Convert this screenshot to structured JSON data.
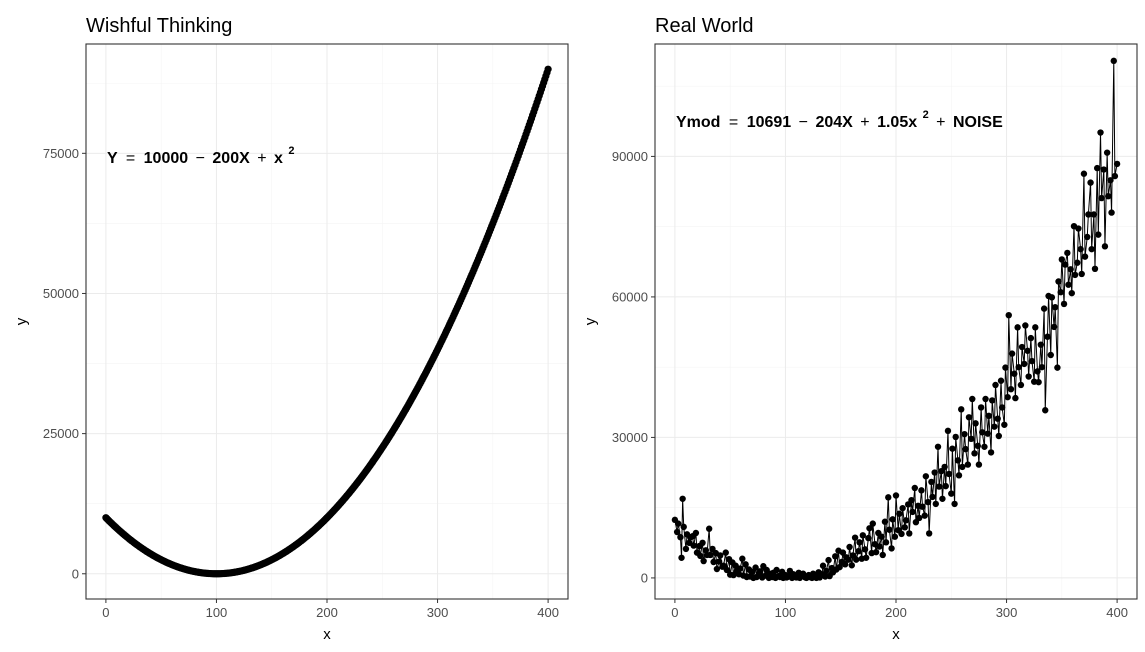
{
  "chart_data": [
    {
      "type": "scatter",
      "title": "Wishful Thinking",
      "xlabel": "x",
      "ylabel": "y",
      "xlim": [
        -18,
        418
      ],
      "ylim": [
        -4500,
        94500
      ],
      "x_ticks": [
        0,
        100,
        200,
        300,
        400
      ],
      "x_tick_labels": [
        "0",
        "100",
        "200",
        "300",
        "400"
      ],
      "y_ticks": [
        0,
        25000,
        50000,
        75000
      ],
      "y_tick_labels": [
        "0",
        "25000",
        "50000",
        "75000"
      ],
      "grid": true,
      "connect_points": false,
      "annotation": {
        "lhs": "Y",
        "eq": "=",
        "t1": "10000",
        "minus": "−",
        "t2": "200X",
        "plus": "+",
        "t3": "x",
        "sup": "2"
      },
      "formula": "y = 10000 - 200x + x^2",
      "x_range": [
        0,
        400,
        1
      ],
      "colors": {
        "points": "#000000"
      }
    },
    {
      "type": "scatter",
      "title": "Real World",
      "xlabel": "x",
      "ylabel": "y",
      "xlim": [
        -18,
        418
      ],
      "ylim": [
        -4500,
        114000
      ],
      "x_ticks": [
        0,
        100,
        200,
        300,
        400
      ],
      "x_tick_labels": [
        "0",
        "100",
        "200",
        "300",
        "400"
      ],
      "y_ticks": [
        0,
        30000,
        60000,
        90000
      ],
      "y_tick_labels": [
        "0",
        "30000",
        "60000",
        "90000"
      ],
      "grid": true,
      "connect_points": true,
      "annotation": {
        "lhs": "Ymod",
        "eq": "=",
        "t1": "10691",
        "minus": "−",
        "t2": "204X",
        "plus": "+",
        "t3": "1.05x",
        "sup": "2",
        "plus2": "+",
        "t4": "NOISE"
      },
      "points": [
        [
          0,
          12400
        ],
        [
          2,
          9800
        ],
        [
          3,
          11600
        ],
        [
          5,
          8700
        ],
        [
          6,
          4300
        ],
        [
          7,
          16900
        ],
        [
          8,
          10900
        ],
        [
          10,
          6200
        ],
        [
          11,
          9300
        ],
        [
          13,
          7500
        ],
        [
          14,
          8700
        ],
        [
          16,
          8900
        ],
        [
          17,
          6900
        ],
        [
          19,
          9600
        ],
        [
          20,
          5400
        ],
        [
          22,
          6800
        ],
        [
          23,
          4700
        ],
        [
          25,
          7500
        ],
        [
          26,
          3600
        ],
        [
          28,
          5900
        ],
        [
          29,
          4900
        ],
        [
          31,
          10500
        ],
        [
          32,
          4900
        ],
        [
          34,
          6200
        ],
        [
          35,
          3400
        ],
        [
          37,
          5300
        ],
        [
          38,
          1900
        ],
        [
          40,
          3500
        ],
        [
          41,
          4800
        ],
        [
          43,
          2400
        ],
        [
          44,
          2600
        ],
        [
          46,
          5400
        ],
        [
          47,
          1700
        ],
        [
          49,
          4000
        ],
        [
          50,
          700
        ],
        [
          52,
          3300
        ],
        [
          53,
          600
        ],
        [
          55,
          2600
        ],
        [
          56,
          1500
        ],
        [
          58,
          800
        ],
        [
          59,
          2000
        ],
        [
          61,
          4100
        ],
        [
          62,
          500
        ],
        [
          64,
          2900
        ],
        [
          65,
          200
        ],
        [
          67,
          1800
        ],
        [
          68,
          300
        ],
        [
          70,
          1300
        ],
        [
          71,
          0
        ],
        [
          73,
          2200
        ],
        [
          74,
          200
        ],
        [
          76,
          900
        ],
        [
          77,
          1400
        ],
        [
          79,
          100
        ],
        [
          80,
          2500
        ],
        [
          82,
          500
        ],
        [
          83,
          1700
        ],
        [
          85,
          0
        ],
        [
          86,
          900
        ],
        [
          88,
          200
        ],
        [
          89,
          1100
        ],
        [
          91,
          0
        ],
        [
          92,
          1700
        ],
        [
          94,
          400
        ],
        [
          95,
          200
        ],
        [
          97,
          1300
        ],
        [
          98,
          0
        ],
        [
          100,
          600
        ],
        [
          101,
          100
        ],
        [
          103,
          300
        ],
        [
          104,
          1500
        ],
        [
          106,
          0
        ],
        [
          107,
          800
        ],
        [
          109,
          200
        ],
        [
          110,
          100
        ],
        [
          112,
          1100
        ],
        [
          113,
          0
        ],
        [
          115,
          400
        ],
        [
          116,
          900
        ],
        [
          118,
          100
        ],
        [
          119,
          0
        ],
        [
          121,
          600
        ],
        [
          122,
          200
        ],
        [
          124,
          0
        ],
        [
          125,
          900
        ],
        [
          127,
          300
        ],
        [
          128,
          0
        ],
        [
          130,
          1200
        ],
        [
          131,
          100
        ],
        [
          133,
          800
        ],
        [
          134,
          2600
        ],
        [
          136,
          300
        ],
        [
          137,
          1500
        ],
        [
          139,
          3800
        ],
        [
          140,
          400
        ],
        [
          142,
          2100
        ],
        [
          143,
          1200
        ],
        [
          145,
          4600
        ],
        [
          146,
          1800
        ],
        [
          148,
          5800
        ],
        [
          149,
          2300
        ],
        [
          151,
          3400
        ],
        [
          152,
          5400
        ],
        [
          154,
          2900
        ],
        [
          155,
          4400
        ],
        [
          157,
          3900
        ],
        [
          158,
          6600
        ],
        [
          160,
          2700
        ],
        [
          161,
          4800
        ],
        [
          163,
          8600
        ],
        [
          164,
          3900
        ],
        [
          166,
          5700
        ],
        [
          167,
          7600
        ],
        [
          169,
          4100
        ],
        [
          170,
          9100
        ],
        [
          172,
          6100
        ],
        [
          173,
          4300
        ],
        [
          175,
          8500
        ],
        [
          176,
          10600
        ],
        [
          178,
          5300
        ],
        [
          179,
          11600
        ],
        [
          181,
          7200
        ],
        [
          182,
          5500
        ],
        [
          184,
          9600
        ],
        [
          185,
          6700
        ],
        [
          187,
          8800
        ],
        [
          188,
          4900
        ],
        [
          190,
          12000
        ],
        [
          191,
          7600
        ],
        [
          193,
          17200
        ],
        [
          194,
          10300
        ],
        [
          196,
          6300
        ],
        [
          197,
          12500
        ],
        [
          199,
          8800
        ],
        [
          200,
          17600
        ],
        [
          202,
          10200
        ],
        [
          203,
          13700
        ],
        [
          205,
          9400
        ],
        [
          206,
          14900
        ],
        [
          208,
          10800
        ],
        [
          209,
          12300
        ],
        [
          211,
          15700
        ],
        [
          212,
          9500
        ],
        [
          214,
          16600
        ],
        [
          215,
          14100
        ],
        [
          217,
          19200
        ],
        [
          218,
          11900
        ],
        [
          220,
          15400
        ],
        [
          221,
          12800
        ],
        [
          223,
          18700
        ],
        [
          224,
          15200
        ],
        [
          226,
          13300
        ],
        [
          227,
          21700
        ],
        [
          229,
          16200
        ],
        [
          230,
          9500
        ],
        [
          232,
          20500
        ],
        [
          233,
          17300
        ],
        [
          235,
          22500
        ],
        [
          236,
          15800
        ],
        [
          238,
          28000
        ],
        [
          239,
          19500
        ],
        [
          241,
          22800
        ],
        [
          242,
          16900
        ],
        [
          244,
          23700
        ],
        [
          245,
          19600
        ],
        [
          247,
          31400
        ],
        [
          248,
          22200
        ],
        [
          250,
          18000
        ],
        [
          251,
          27600
        ],
        [
          253,
          15800
        ],
        [
          254,
          30100
        ],
        [
          256,
          25100
        ],
        [
          257,
          21900
        ],
        [
          259,
          36000
        ],
        [
          260,
          23700
        ],
        [
          262,
          30700
        ],
        [
          263,
          27500
        ],
        [
          265,
          24200
        ],
        [
          266,
          34300
        ],
        [
          268,
          29700
        ],
        [
          269,
          38200
        ],
        [
          271,
          26600
        ],
        [
          272,
          33000
        ],
        [
          274,
          28200
        ],
        [
          275,
          24200
        ],
        [
          277,
          36400
        ],
        [
          278,
          31100
        ],
        [
          280,
          28000
        ],
        [
          281,
          38200
        ],
        [
          283,
          30800
        ],
        [
          284,
          34600
        ],
        [
          286,
          26800
        ],
        [
          287,
          37900
        ],
        [
          289,
          32300
        ],
        [
          290,
          41200
        ],
        [
          292,
          34000
        ],
        [
          293,
          30300
        ],
        [
          295,
          42100
        ],
        [
          296,
          36400
        ],
        [
          298,
          32700
        ],
        [
          299,
          44900
        ],
        [
          301,
          38600
        ],
        [
          302,
          56100
        ],
        [
          304,
          40300
        ],
        [
          305,
          47900
        ],
        [
          307,
          43600
        ],
        [
          308,
          38400
        ],
        [
          310,
          53500
        ],
        [
          311,
          45000
        ],
        [
          313,
          41200
        ],
        [
          314,
          49300
        ],
        [
          316,
          45700
        ],
        [
          317,
          53900
        ],
        [
          319,
          48500
        ],
        [
          320,
          43000
        ],
        [
          322,
          51200
        ],
        [
          323,
          46300
        ],
        [
          325,
          41900
        ],
        [
          326,
          53500
        ],
        [
          328,
          44100
        ],
        [
          329,
          41800
        ],
        [
          331,
          49800
        ],
        [
          332,
          45000
        ],
        [
          334,
          57500
        ],
        [
          335,
          35800
        ],
        [
          337,
          51500
        ],
        [
          338,
          60200
        ],
        [
          340,
          47600
        ],
        [
          341,
          59900
        ],
        [
          343,
          53600
        ],
        [
          344,
          57800
        ],
        [
          346,
          44900
        ],
        [
          347,
          63300
        ],
        [
          349,
          61000
        ],
        [
          350,
          68000
        ],
        [
          352,
          58500
        ],
        [
          353,
          66900
        ],
        [
          355,
          69400
        ],
        [
          356,
          62600
        ],
        [
          358,
          65900
        ],
        [
          359,
          60800
        ],
        [
          361,
          75100
        ],
        [
          362,
          64700
        ],
        [
          364,
          67300
        ],
        [
          365,
          74600
        ],
        [
          367,
          70200
        ],
        [
          368,
          64900
        ],
        [
          370,
          86300
        ],
        [
          371,
          68600
        ],
        [
          373,
          72800
        ],
        [
          374,
          77600
        ],
        [
          376,
          84400
        ],
        [
          377,
          70200
        ],
        [
          379,
          77600
        ],
        [
          380,
          66000
        ],
        [
          382,
          87500
        ],
        [
          383,
          73300
        ],
        [
          385,
          95100
        ],
        [
          386,
          81100
        ],
        [
          388,
          87200
        ],
        [
          389,
          70800
        ],
        [
          391,
          90800
        ],
        [
          392,
          81500
        ],
        [
          394,
          84900
        ],
        [
          395,
          78000
        ],
        [
          397,
          110400
        ],
        [
          398,
          85800
        ],
        [
          400,
          88400
        ]
      ],
      "colors": {
        "points": "#000000",
        "line": "#000000"
      }
    }
  ]
}
